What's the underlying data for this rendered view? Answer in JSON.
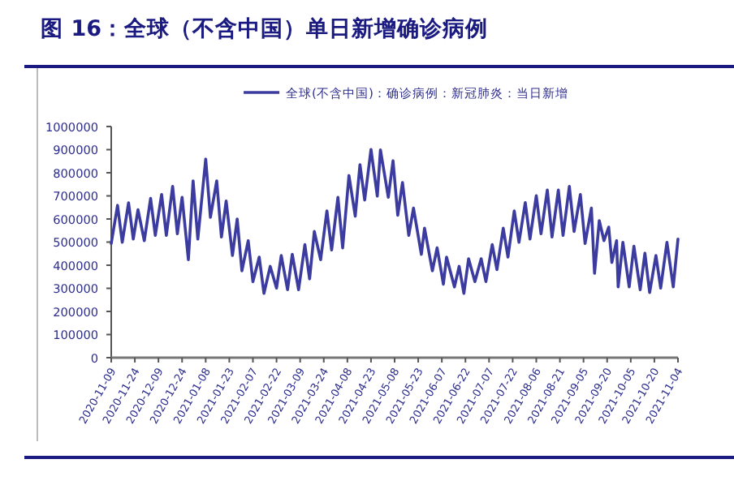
{
  "chart_data": {
    "type": "line",
    "title": "图 16：全球（不含中国）单日新增确诊病例",
    "series": [
      {
        "name": "全球(不含中国)：确诊病例：新冠肺炎：当日新增",
        "color": "#3c3ca0",
        "x": [
          "2020-11-09",
          "2020-11-13",
          "2020-11-16",
          "2020-11-20",
          "2020-11-23",
          "2020-11-26",
          "2020-11-30",
          "2020-12-04",
          "2020-12-07",
          "2020-12-11",
          "2020-12-14",
          "2020-12-18",
          "2020-12-21",
          "2020-12-24",
          "2020-12-28",
          "2020-12-31",
          "2021-01-03",
          "2021-01-08",
          "2021-01-11",
          "2021-01-15",
          "2021-01-18",
          "2021-01-21",
          "2021-01-25",
          "2021-01-28",
          "2021-01-31",
          "2021-02-04",
          "2021-02-07",
          "2021-02-11",
          "2021-02-14",
          "2021-02-18",
          "2021-02-22",
          "2021-02-25",
          "2021-03-01",
          "2021-03-04",
          "2021-03-08",
          "2021-03-12",
          "2021-03-15",
          "2021-03-18",
          "2021-03-22",
          "2021-03-26",
          "2021-03-29",
          "2021-04-02",
          "2021-04-05",
          "2021-04-09",
          "2021-04-13",
          "2021-04-16",
          "2021-04-19",
          "2021-04-23",
          "2021-04-27",
          "2021-04-29",
          "2021-05-04",
          "2021-05-07",
          "2021-05-10",
          "2021-05-13",
          "2021-05-17",
          "2021-05-20",
          "2021-05-25",
          "2021-05-27",
          "2021-06-01",
          "2021-06-04",
          "2021-06-08",
          "2021-06-10",
          "2021-06-15",
          "2021-06-18",
          "2021-06-21",
          "2021-06-24",
          "2021-06-28",
          "2021-07-02",
          "2021-07-05",
          "2021-07-09",
          "2021-07-12",
          "2021-07-16",
          "2021-07-19",
          "2021-07-23",
          "2021-07-26",
          "2021-07-30",
          "2021-08-02",
          "2021-08-06",
          "2021-08-09",
          "2021-08-13",
          "2021-08-16",
          "2021-08-20",
          "2021-08-23",
          "2021-08-27",
          "2021-08-30",
          "2021-09-03",
          "2021-09-06",
          "2021-09-10",
          "2021-09-12",
          "2021-09-15",
          "2021-09-18",
          "2021-09-21",
          "2021-09-23",
          "2021-09-26",
          "2021-09-27",
          "2021-09-30",
          "2021-10-04",
          "2021-10-07",
          "2021-10-11",
          "2021-10-14",
          "2021-10-17",
          "2021-10-21",
          "2021-10-24",
          "2021-10-28",
          "2021-11-01",
          "2021-11-04"
        ],
        "values": [
          494000,
          659000,
          499000,
          670000,
          513000,
          640000,
          506000,
          689000,
          529000,
          706000,
          529000,
          741000,
          536000,
          694000,
          424000,
          765000,
          513000,
          859000,
          607000,
          765000,
          522000,
          678000,
          442000,
          600000,
          376000,
          506000,
          329000,
          435000,
          278000,
          395000,
          301000,
          442000,
          294000,
          447000,
          294000,
          489000,
          341000,
          546000,
          424000,
          635000,
          466000,
          694000,
          475000,
          788000,
          612000,
          835000,
          682000,
          901000,
          699000,
          899000,
          694000,
          852000,
          616000,
          758000,
          529000,
          647000,
          447000,
          560000,
          376000,
          475000,
          318000,
          435000,
          306000,
          395000,
          278000,
          428000,
          329000,
          428000,
          329000,
          489000,
          381000,
          560000,
          435000,
          635000,
          499000,
          671000,
          513000,
          701000,
          536000,
          725000,
          522000,
          725000,
          529000,
          741000,
          546000,
          706000,
          494000,
          647000,
          365000,
          593000,
          506000,
          565000,
          412000,
          506000,
          306000,
          499000,
          306000,
          482000,
          294000,
          452000,
          282000,
          442000,
          301000,
          499000,
          306000,
          513000
        ]
      }
    ],
    "xlim": [
      "2020-11-09",
      "2021-11-04"
    ],
    "xticks": [
      "2020-11-09",
      "2020-11-24",
      "2020-12-09",
      "2020-12-24",
      "2021-01-08",
      "2021-01-23",
      "2021-02-07",
      "2021-02-22",
      "2021-03-09",
      "2021-03-24",
      "2021-04-08",
      "2021-04-23",
      "2021-05-08",
      "2021-05-23",
      "2021-06-07",
      "2021-06-22",
      "2021-07-07",
      "2021-07-22",
      "2021-08-06",
      "2021-08-21",
      "2021-09-05",
      "2021-09-20",
      "2021-10-05",
      "2021-10-20",
      "2021-11-04"
    ],
    "ylim": [
      0,
      1000000
    ],
    "yticks": [
      0,
      100000,
      200000,
      300000,
      400000,
      500000,
      600000,
      700000,
      800000,
      900000,
      1000000
    ],
    "legend": "top",
    "grid": false,
    "marker": "none",
    "line_style": "solid"
  }
}
